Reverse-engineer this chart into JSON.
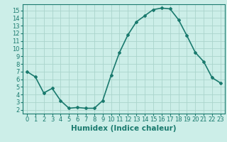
{
  "x": [
    0,
    1,
    2,
    3,
    4,
    5,
    6,
    7,
    8,
    9,
    10,
    11,
    12,
    13,
    14,
    15,
    16,
    17,
    18,
    19,
    20,
    21,
    22,
    23
  ],
  "y": [
    7.0,
    6.3,
    4.2,
    4.8,
    3.2,
    2.2,
    2.3,
    2.2,
    2.2,
    3.2,
    6.5,
    9.5,
    11.8,
    13.5,
    14.3,
    15.1,
    15.3,
    15.2,
    13.8,
    11.7,
    9.5,
    8.3,
    6.2,
    5.5
  ],
  "line_color": "#1a7a6e",
  "marker": "D",
  "marker_size": 2,
  "bg_color": "#cceee8",
  "grid_color": "#aad4cc",
  "xlabel": "Humidex (Indice chaleur)",
  "xlim": [
    -0.5,
    23.5
  ],
  "ylim": [
    1.5,
    15.8
  ],
  "yticks": [
    2,
    3,
    4,
    5,
    6,
    7,
    8,
    9,
    10,
    11,
    12,
    13,
    14,
    15
  ],
  "xticks": [
    0,
    1,
    2,
    3,
    4,
    5,
    6,
    7,
    8,
    9,
    10,
    11,
    12,
    13,
    14,
    15,
    16,
    17,
    18,
    19,
    20,
    21,
    22,
    23
  ],
  "tick_label_fontsize": 6.0,
  "xlabel_fontsize": 7.5,
  "line_width": 1.2
}
